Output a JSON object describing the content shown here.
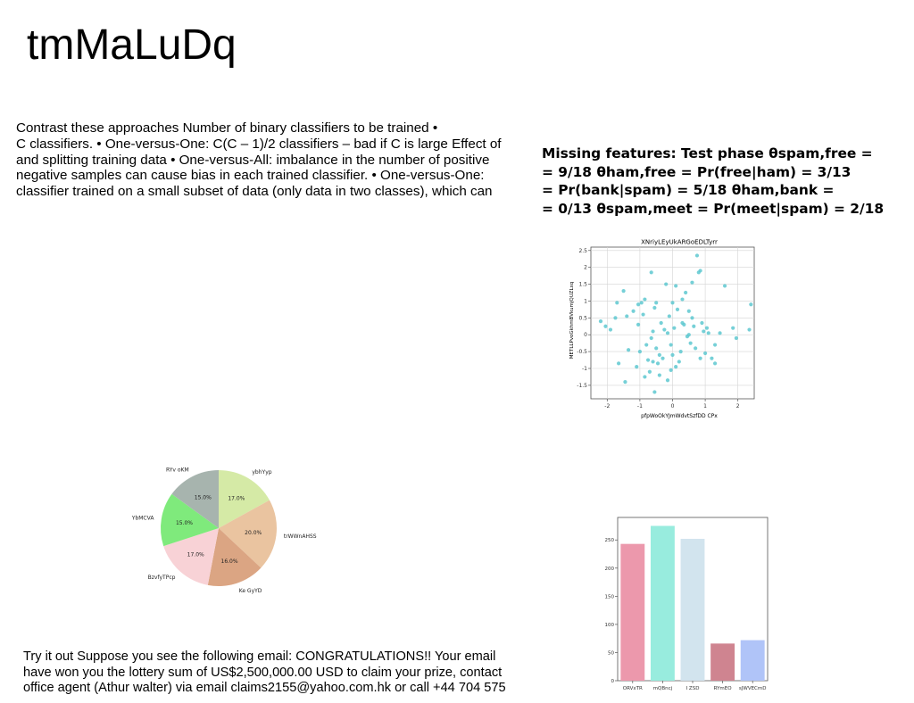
{
  "title": "tmMaLuDq",
  "paragraph1": [
    "Contrast these approaches Number of binary classifiers to be trained •",
    "C classifiers. • One-versus-One: C(C – 1)/2 classifiers – bad if C is large Effect of",
    "and splitting training data • One-versus-All: imbalance in the number of positive",
    "negative samples can cause bias in each trained classifier. • One-versus-One:",
    "classifier trained on a small subset of data (only data in two classes), which can"
  ],
  "paragraph2": [
    "Missing features: Test phase θspam,free =",
    "= 9/18 θham,free = Pr(free|ham) = 3/13",
    "= Pr(bank|spam) = 5/18 θham,bank =",
    "= 0/13 θspam,meet = Pr(meet|spam) = 2/18"
  ],
  "paragraph3": [
    "Try it out Suppose you see the following email: CONGRATULATIONS!! Your email",
    "have won you the lottery sum of US$2,500,000.00 USD to claim your prize, contact",
    "office agent (Athur walter) via email claims2155@yahoo.com.hk or call +44 704 575"
  ],
  "chart_data": [
    {
      "type": "scatter",
      "title": "XNriyLEyUkARGoEDLTyrr",
      "xlabel": "pfpWoOkYJmWdvtSzfDD CPx",
      "ylabel": "METLLPvoGkhmBVkumjQUZLxq",
      "xlim": [
        -2.5,
        2.5
      ],
      "ylim": [
        -1.9,
        2.6
      ],
      "xticks": [
        -2,
        -1,
        0,
        1,
        2
      ],
      "yticks": [
        -1.5,
        -1.0,
        -0.5,
        0.0,
        0.5,
        1.0,
        1.5,
        2.0,
        2.5
      ],
      "grid": true,
      "color": "#5ec8d0",
      "x": [
        -2.2,
        -2.05,
        -1.9,
        -1.75,
        -1.7,
        -1.65,
        -1.5,
        -1.45,
        -1.35,
        -1.2,
        -1.1,
        -1.05,
        -1.05,
        -1.0,
        -0.95,
        -0.9,
        -0.85,
        -0.8,
        -0.75,
        -0.7,
        -0.65,
        -0.65,
        -0.6,
        -0.6,
        -0.55,
        -0.55,
        -0.5,
        -0.5,
        -0.45,
        -0.4,
        -0.35,
        -0.3,
        -0.25,
        -0.2,
        -0.15,
        -0.1,
        -0.05,
        0.0,
        0.0,
        0.05,
        0.1,
        0.15,
        0.2,
        0.25,
        0.3,
        0.3,
        0.35,
        0.4,
        0.45,
        0.5,
        0.55,
        0.6,
        0.65,
        0.7,
        0.75,
        0.8,
        0.85,
        0.9,
        0.95,
        1.0,
        1.05,
        1.1,
        1.2,
        1.3,
        1.45,
        1.6,
        1.85,
        1.95,
        2.35,
        2.4,
        -0.85,
        -0.15,
        0.85,
        -1.4,
        0.6,
        -0.4,
        0.1,
        0.5,
        -0.05,
        1.3
      ],
      "y": [
        0.4,
        0.25,
        0.15,
        0.5,
        0.95,
        -0.85,
        1.3,
        -1.4,
        -0.45,
        0.7,
        -0.95,
        0.3,
        0.9,
        -0.5,
        0.95,
        0.6,
        1.05,
        -0.3,
        -0.75,
        -1.1,
        1.85,
        -0.1,
        0.1,
        -0.8,
        0.8,
        -1.7,
        -0.4,
        0.95,
        -0.85,
        -1.2,
        0.35,
        -0.7,
        0.15,
        1.5,
        -1.35,
        0.55,
        -0.3,
        0.95,
        -0.6,
        0.2,
        1.45,
        0.75,
        -0.8,
        -0.5,
        1.05,
        0.35,
        0.3,
        1.25,
        -0.05,
        0.0,
        -0.25,
        1.55,
        0.25,
        -0.4,
        2.35,
        1.85,
        -0.7,
        0.35,
        0.1,
        -0.55,
        0.2,
        0.05,
        -0.7,
        -0.3,
        0.05,
        1.45,
        0.2,
        -0.1,
        0.15,
        0.9,
        -1.25,
        0.05,
        1.9,
        0.55,
        0.5,
        -0.6,
        -0.95,
        0.7,
        -1.05,
        -0.85
      ]
    },
    {
      "type": "pie",
      "labels": [
        "ybhYyp",
        "trWWnAHSS",
        "Ke GyYD",
        "BzvfyTPcp",
        "YbMCVA",
        "RYv oKM"
      ],
      "values": [
        17.0,
        20.0,
        16.0,
        17.0,
        15.0,
        15.0
      ],
      "value_labels": [
        "17.0%",
        "20.0%",
        "16.0%",
        "17.0%",
        "15.0%",
        "15.0%"
      ],
      "colors": [
        "#d5eaa6",
        "#eac4a0",
        "#dba583",
        "#f8d2d6",
        "#7fea7c",
        "#a7b4ae"
      ],
      "start_angle_deg": 90,
      "direction": "clockwise"
    },
    {
      "type": "bar",
      "categories": [
        "ORVxTR",
        "mQBncj",
        "I ZSD",
        "RYmEO",
        "sJWVECmD"
      ],
      "values": [
        243,
        275,
        252,
        66,
        72
      ],
      "colors": [
        "#ec98ac",
        "#98ecde",
        "#d2e4ee",
        "#cf8490",
        "#b0c4f8"
      ],
      "ylim": [
        0,
        290
      ],
      "yticks": [
        0,
        50,
        100,
        150,
        200,
        250
      ]
    }
  ]
}
